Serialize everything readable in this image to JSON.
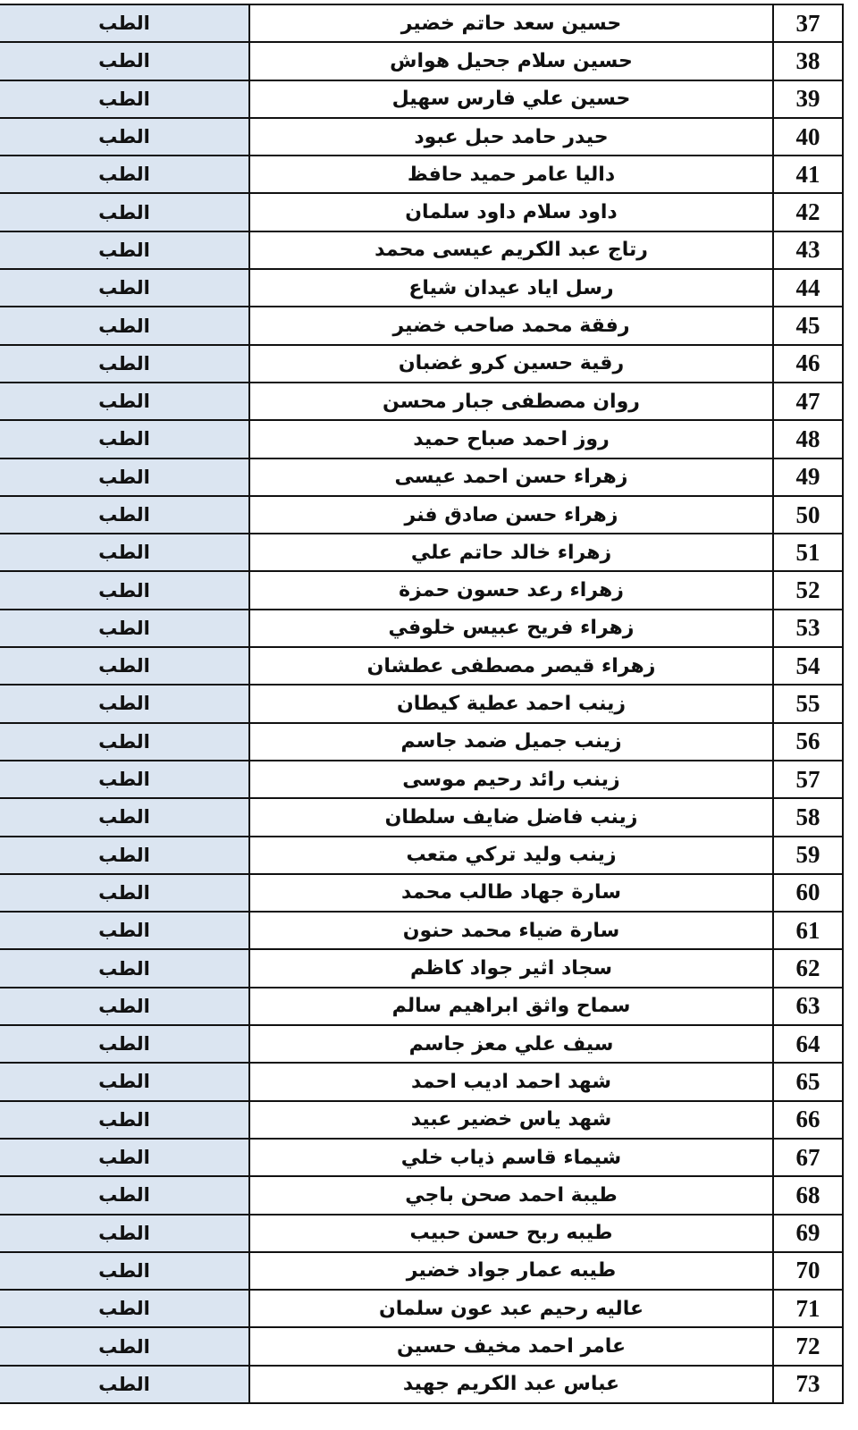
{
  "table": {
    "rows": [
      {
        "no": "37",
        "name": "حسين سعد حاتم خضير",
        "dept": "الطب"
      },
      {
        "no": "38",
        "name": "حسين سلام جحيل هواش",
        "dept": "الطب"
      },
      {
        "no": "39",
        "name": "حسين علي فارس سهيل",
        "dept": "الطب"
      },
      {
        "no": "40",
        "name": "حيدر حامد حبل عبود",
        "dept": "الطب"
      },
      {
        "no": "41",
        "name": "داليا عامر حميد حافظ",
        "dept": "الطب"
      },
      {
        "no": "42",
        "name": "داود سلام داود سلمان",
        "dept": "الطب"
      },
      {
        "no": "43",
        "name": "رتاج عبد الكريم عيسى محمد",
        "dept": "الطب"
      },
      {
        "no": "44",
        "name": "رسل اياد عيدان شياع",
        "dept": "الطب"
      },
      {
        "no": "45",
        "name": "رفقة محمد صاحب خضير",
        "dept": "الطب"
      },
      {
        "no": "46",
        "name": "رقية حسين كرو غضبان",
        "dept": "الطب"
      },
      {
        "no": "47",
        "name": "روان مصطفى جبار محسن",
        "dept": "الطب"
      },
      {
        "no": "48",
        "name": "روز احمد صباح حميد",
        "dept": "الطب"
      },
      {
        "no": "49",
        "name": "زهراء حسن احمد عيسى",
        "dept": "الطب"
      },
      {
        "no": "50",
        "name": "زهراء حسن صادق فنر",
        "dept": "الطب"
      },
      {
        "no": "51",
        "name": "زهراء خالد حاتم علي",
        "dept": "الطب"
      },
      {
        "no": "52",
        "name": "زهراء رعد حسون حمزة",
        "dept": "الطب"
      },
      {
        "no": "53",
        "name": "زهراء فريح عبيس خلوفي",
        "dept": "الطب"
      },
      {
        "no": "54",
        "name": "زهراء قيصر مصطفى عطشان",
        "dept": "الطب"
      },
      {
        "no": "55",
        "name": "زينب احمد عطية كيطان",
        "dept": "الطب"
      },
      {
        "no": "56",
        "name": "زينب جميل ضمد جاسم",
        "dept": "الطب"
      },
      {
        "no": "57",
        "name": "زينب رائد رحيم موسى",
        "dept": "الطب"
      },
      {
        "no": "58",
        "name": "زينب فاضل ضايف سلطان",
        "dept": "الطب"
      },
      {
        "no": "59",
        "name": "زينب وليد تركي متعب",
        "dept": "الطب"
      },
      {
        "no": "60",
        "name": "سارة جهاد طالب محمد",
        "dept": "الطب"
      },
      {
        "no": "61",
        "name": "سارة ضياء محمد حنون",
        "dept": "الطب"
      },
      {
        "no": "62",
        "name": "سجاد اثير جواد كاظم",
        "dept": "الطب"
      },
      {
        "no": "63",
        "name": "سماح واثق ابراهيم سالم",
        "dept": "الطب"
      },
      {
        "no": "64",
        "name": "سيف علي معز جاسم",
        "dept": "الطب"
      },
      {
        "no": "65",
        "name": "شهد احمد اديب احمد",
        "dept": "الطب"
      },
      {
        "no": "66",
        "name": "شهد ياس خضير عبيد",
        "dept": "الطب"
      },
      {
        "no": "67",
        "name": "شيماء قاسم ذياب خلي",
        "dept": "الطب"
      },
      {
        "no": "68",
        "name": "طيبة احمد صحن باجي",
        "dept": "الطب"
      },
      {
        "no": "69",
        "name": "طيبه ربح حسن حبيب",
        "dept": "الطب"
      },
      {
        "no": "70",
        "name": "طيبه عمار جواد خضير",
        "dept": "الطب"
      },
      {
        "no": "71",
        "name": "عاليه رحيم عبد عون سلمان",
        "dept": "الطب"
      },
      {
        "no": "72",
        "name": "عامر احمد مخيف حسين",
        "dept": "الطب"
      },
      {
        "no": "73",
        "name": "عباس عبد الكريم جهيد",
        "dept": "الطب"
      }
    ]
  },
  "colors": {
    "dept_column_bg": "#dbe5f1",
    "border": "#111111"
  }
}
